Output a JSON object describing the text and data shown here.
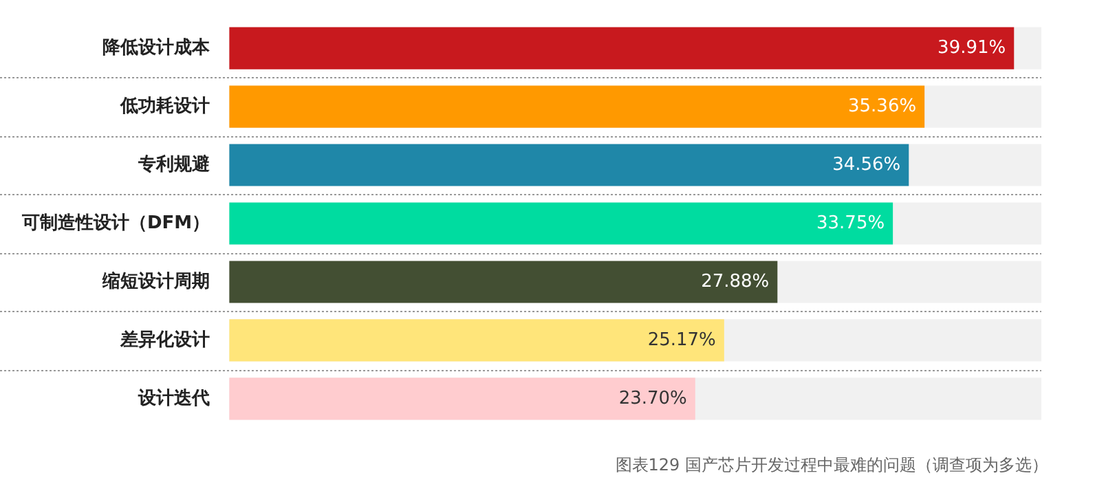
{
  "chart_data": {
    "type": "bar",
    "orientation": "horizontal",
    "categories": [
      "降低设计成本",
      "低功耗设计",
      "专利规避",
      "可制造性设计（DFM）",
      "缩短设计周期",
      "差异化设计",
      "设计迭代"
    ],
    "values": [
      39.91,
      35.36,
      34.56,
      33.75,
      27.88,
      25.17,
      23.7
    ],
    "colors": [
      "#c8191e",
      "#ff9900",
      "#1f87a8",
      "#00dca0",
      "#434f33",
      "#ffe57a",
      "#ffcccf"
    ],
    "value_labels": [
      "39.91%",
      "35.36%",
      "34.56%",
      "33.75%",
      "27.88%",
      "25.17%",
      "23.70%"
    ],
    "xlim": [
      0,
      41.3
    ],
    "tick_labels": "y",
    "grid": "y",
    "legend": false,
    "annotations": [
      "图表129 国产芯片开发过程中最难的问题（调查项为多选）"
    ]
  }
}
